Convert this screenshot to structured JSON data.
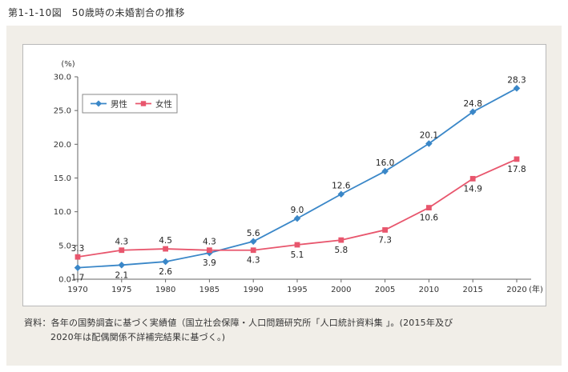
{
  "figure": {
    "title": "第1-1-10図　50歳時の未婚割合の推移",
    "source_line1": "資料：各年の国勢調査に基づく実績値（国立社会保障・人口問題研究所「人口統計資料集 」。(2015年及び",
    "source_line2": "2020年は配偶関係不詳補完結果に基づく。)"
  },
  "chart_data": {
    "type": "line",
    "title": "50歳時の未婚割合の推移",
    "x": [
      1970,
      1975,
      1980,
      1985,
      1990,
      1995,
      2000,
      2005,
      2010,
      2015,
      2020
    ],
    "series": [
      {
        "name": "男性",
        "color": "#3a87c8",
        "marker": "diamond",
        "values": [
          1.7,
          2.1,
          2.6,
          3.9,
          5.6,
          9.0,
          12.6,
          16.0,
          20.1,
          24.8,
          28.3
        ]
      },
      {
        "name": "女性",
        "color": "#e8566d",
        "marker": "square",
        "values": [
          3.3,
          4.3,
          4.5,
          4.3,
          4.3,
          5.1,
          5.8,
          7.3,
          10.6,
          14.9,
          17.8
        ]
      }
    ],
    "ylabel_unit": "(%)",
    "xlabel_unit": "(年)",
    "ylim": [
      0,
      30
    ],
    "ytick_step": 5,
    "grid": false,
    "legend_position": "top-left",
    "axis_color": "#666666",
    "label_color": "#222222",
    "tick_label_color": "#333333"
  }
}
